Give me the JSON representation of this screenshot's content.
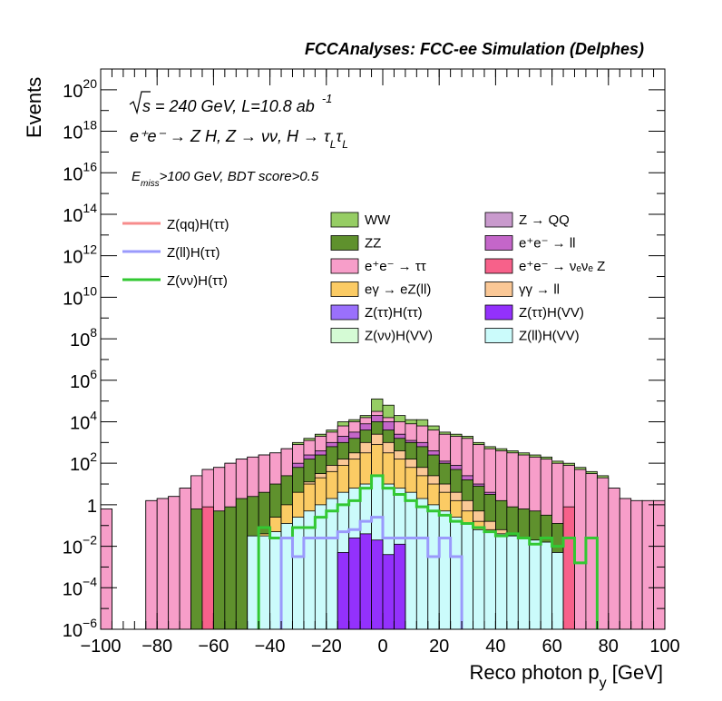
{
  "chart_data": {
    "type": "histogram",
    "title": "FCCAnalyses: FCC-ee Simulation (Delphes)",
    "xlabel": "Reco photon p",
    "xlabel_sub": "y",
    "xlabel_unit": " [GeV]",
    "ylabel": "Events",
    "xlim": [
      -100,
      100
    ],
    "ylim_log10": [
      -6,
      21
    ],
    "log_y": true,
    "grid": false,
    "x_ticks": [
      -100,
      -80,
      -60,
      -40,
      -20,
      0,
      20,
      40,
      60,
      80,
      100
    ],
    "y_ticks": [
      {
        "exp": -6,
        "label": "10",
        "sup": "−6"
      },
      {
        "exp": -4,
        "label": "10",
        "sup": "−4"
      },
      {
        "exp": -2,
        "label": "10",
        "sup": "−2"
      },
      {
        "exp": 0,
        "label": "1",
        "sup": ""
      },
      {
        "exp": 2,
        "label": "10",
        "sup": "2"
      },
      {
        "exp": 4,
        "label": "10",
        "sup": "4"
      },
      {
        "exp": 6,
        "label": "10",
        "sup": "6"
      },
      {
        "exp": 8,
        "label": "10",
        "sup": "8"
      },
      {
        "exp": 10,
        "label": "10",
        "sup": "10"
      },
      {
        "exp": 12,
        "label": "10",
        "sup": "12"
      },
      {
        "exp": 14,
        "label": "10",
        "sup": "14"
      },
      {
        "exp": 16,
        "label": "10",
        "sup": "16"
      },
      {
        "exp": 18,
        "label": "10",
        "sup": "18"
      },
      {
        "exp": 20,
        "label": "10",
        "sup": "20"
      }
    ],
    "annotations": {
      "energy": "= 240 GeV, L=10.8 ab",
      "energy_s": "s",
      "energy_sup": "-1",
      "process": "e⁺e⁻ → Z H, Z → νν, H → τ",
      "process_sub": "L",
      "cut": "E",
      "cut_sub": "miss",
      "cut_rest": ">100 GeV, BDT score>0.5"
    },
    "bin_width": 4,
    "bins_x": [
      -98,
      -94,
      -90,
      -86,
      -82,
      -78,
      -74,
      -70,
      -66,
      -62,
      -58,
      -54,
      -50,
      -46,
      -42,
      -38,
      -34,
      -30,
      -26,
      -22,
      -18,
      -14,
      -10,
      -6,
      -2,
      2,
      6,
      10,
      14,
      18,
      22,
      26,
      30,
      34,
      38,
      42,
      46,
      50,
      54,
      58,
      62,
      66,
      70,
      74,
      78,
      82,
      86,
      90,
      94,
      98
    ],
    "stack_order": [
      "ZZ",
      "WW",
      "Z → QQ",
      "e⁺e⁻ → ll",
      "e⁺e⁻ → ττ",
      "e⁺e⁻ → νₑνₑ Z",
      "eγ → eZ(ll)",
      "γγ → ll",
      "Z(ττ)H(ττ)",
      "Z(ττ)H(VV)",
      "Z(νν)H(VV)",
      "Z(ll)H(VV)"
    ],
    "stack_total_log10": [
      -0.2,
      -6,
      -6,
      -6,
      0.2,
      0.3,
      0.4,
      0.8,
      1.4,
      1.7,
      1.8,
      2.0,
      2.2,
      2.3,
      2.4,
      2.5,
      2.7,
      3.0,
      3.2,
      3.4,
      3.6,
      4.0,
      4.1,
      4.3,
      5.1,
      4.8,
      4.3,
      4.1,
      4.1,
      3.8,
      3.5,
      3.4,
      3.3,
      3.0,
      2.8,
      2.7,
      2.6,
      2.5,
      2.4,
      2.3,
      2.1,
      2.0,
      1.8,
      1.6,
      1.4,
      0.8,
      0.3,
      0.2,
      0.2,
      0.2
    ],
    "components": [
      {
        "name": "e⁺e⁻ → ττ",
        "color": "#f79ec9",
        "log10": [
          -0.2,
          null,
          null,
          null,
          0.2,
          0.3,
          0.4,
          0.8,
          1.4,
          1.7,
          1.8,
          2.0,
          2.2,
          2.3,
          2.4,
          2.5,
          2.7,
          2.9,
          3.1,
          3.3,
          3.5,
          3.8,
          4.0,
          4.2,
          4.5,
          4.2,
          4.0,
          3.9,
          3.8,
          3.6,
          3.4,
          3.3,
          3.2,
          2.9,
          2.7,
          2.6,
          2.5,
          2.4,
          2.3,
          2.2,
          2.0,
          1.9,
          1.7,
          1.5,
          1.3,
          0.8,
          0.3,
          0.2,
          0.2,
          0.2
        ]
      },
      {
        "name": "e⁺e⁻ → ll",
        "color": "#c466c9",
        "log10": [
          null,
          null,
          null,
          null,
          null,
          null,
          null,
          null,
          null,
          null,
          null,
          null,
          -0.8,
          -0.4,
          0.2,
          0.8,
          1.4,
          2.0,
          2.4,
          2.6,
          3.0,
          3.3,
          3.5,
          3.9,
          4.3,
          4.0,
          3.4,
          3.1,
          3.0,
          2.6,
          2.1,
          1.9,
          1.4,
          1.0,
          0.6,
          0.1,
          -0.3,
          -0.8,
          -1.2,
          -1.5,
          null,
          null,
          null,
          null,
          null,
          null,
          null,
          null,
          null,
          null
        ]
      },
      {
        "name": "ZZ",
        "color": "#5f912d",
        "log10": [
          null,
          null,
          null,
          null,
          null,
          null,
          null,
          null,
          -0.2,
          -0.9,
          -0.3,
          -0.1,
          0.3,
          0.4,
          0.6,
          1.0,
          1.4,
          1.8,
          2.2,
          2.4,
          2.8,
          3.0,
          3.2,
          3.6,
          4.0,
          3.6,
          3.2,
          3.0,
          2.8,
          2.4,
          2.0,
          1.7,
          1.2,
          0.9,
          0.5,
          0.2,
          -0.1,
          -0.2,
          -0.3,
          -0.5,
          -0.9,
          null,
          null,
          null,
          null,
          null,
          null,
          null,
          null,
          null
        ]
      },
      {
        "name": "γγ → ll",
        "color": "#fbc896",
        "log10": [
          null,
          null,
          null,
          null,
          null,
          null,
          null,
          null,
          null,
          null,
          null,
          null,
          null,
          null,
          null,
          -1.2,
          -0.2,
          0.5,
          1.1,
          1.5,
          1.9,
          2.2,
          2.5,
          3.0,
          3.4,
          3.0,
          2.6,
          2.2,
          1.8,
          1.4,
          1.0,
          0.6,
          0.2,
          -0.3,
          -0.8,
          -1.2,
          -1.5,
          null,
          null,
          null,
          null,
          null,
          null,
          null,
          null,
          null,
          null,
          null,
          null,
          null
        ]
      },
      {
        "name": "eγ → eZ(ll)",
        "color": "#fbcb64",
        "log10": [
          null,
          null,
          null,
          null,
          null,
          null,
          null,
          null,
          null,
          null,
          null,
          null,
          null,
          null,
          -1.4,
          -0.6,
          0.0,
          0.6,
          1.0,
          1.3,
          1.6,
          1.9,
          2.2,
          2.5,
          2.9,
          2.5,
          2.2,
          1.8,
          1.4,
          1.0,
          0.6,
          0.2,
          -0.3,
          -0.8,
          -1.2,
          -1.6,
          null,
          null,
          null,
          null,
          null,
          null,
          null,
          null,
          null,
          null,
          null,
          null,
          null,
          null
        ]
      },
      {
        "name": "Z(ll)H(VV)",
        "color": "#cbfbfb",
        "log10": [
          null,
          null,
          null,
          null,
          null,
          null,
          null,
          null,
          null,
          null,
          null,
          null,
          null,
          -1.5,
          -1.5,
          -1.3,
          -0.9,
          -0.6,
          -0.3,
          0.0,
          0.3,
          0.6,
          0.8,
          1.0,
          1.4,
          1.0,
          0.8,
          0.6,
          0.3,
          0.0,
          -0.3,
          -0.6,
          -0.9,
          -1.2,
          -1.3,
          -1.4,
          -1.5,
          -1.6,
          -1.7,
          -1.8,
          -2.3,
          null,
          null,
          null,
          null,
          null,
          null,
          null,
          null,
          null
        ]
      },
      {
        "name": "Z(ττ)H(VV)",
        "color": "#9331fc",
        "log10": [
          null,
          null,
          null,
          null,
          null,
          null,
          null,
          null,
          null,
          null,
          null,
          null,
          null,
          null,
          null,
          null,
          null,
          null,
          null,
          null,
          null,
          -2.3,
          -1.6,
          -1.4,
          -1.7,
          -2.4,
          -1.9,
          null,
          null,
          null,
          null,
          null,
          null,
          null,
          null,
          null,
          null,
          null,
          null,
          null,
          null,
          null,
          null,
          null,
          null,
          null,
          null,
          null,
          null,
          null
        ]
      },
      {
        "name": "e⁺e⁻ → νₑνₑ Z",
        "color": "#f7618a",
        "log10": [
          null,
          null,
          null,
          null,
          null,
          null,
          null,
          null,
          null,
          -0.1,
          null,
          null,
          null,
          null,
          null,
          null,
          null,
          null,
          null,
          null,
          null,
          null,
          null,
          null,
          null,
          null,
          null,
          null,
          null,
          null,
          null,
          null,
          null,
          null,
          null,
          null,
          null,
          null,
          null,
          null,
          null,
          -0.1,
          null,
          null,
          null,
          null,
          null,
          null,
          null,
          null
        ]
      }
    ],
    "legend_lines": [
      {
        "name": "Z(qq)H(ττ)",
        "color": "#f78c8c"
      },
      {
        "name": "Z(ll)H(ττ)",
        "color": "#9a9afc"
      },
      {
        "name": "Z(νν)H(ττ)",
        "color": "#32c832"
      }
    ],
    "legend_boxes": [
      {
        "name": "WW",
        "color": "#96cd64"
      },
      {
        "name": "Z → QQ",
        "color": "#c99acd"
      },
      {
        "name": "ZZ",
        "color": "#5f912d"
      },
      {
        "name": "e⁺e⁻ → ll",
        "color": "#c466c9"
      },
      {
        "name": "e⁺e⁻ → ττ",
        "color": "#f79ec9"
      },
      {
        "name": "e⁺e⁻ → νₑνₑ Z",
        "color": "#f7618a"
      },
      {
        "name": "eγ → eZ(ll)",
        "color": "#fbcb64"
      },
      {
        "name": "γγ → ll",
        "color": "#fbc896"
      },
      {
        "name": "Z(ττ)H(ττ)",
        "color": "#9a70fc"
      },
      {
        "name": "Z(ττ)H(VV)",
        "color": "#9331fc"
      },
      {
        "name": "Z(νν)H(VV)",
        "color": "#d5fbd5"
      },
      {
        "name": "Z(ll)H(VV)",
        "color": "#cbfbfb"
      }
    ],
    "line_series": [
      {
        "name": "Z(νν)H(ττ)",
        "color": "#32c832",
        "log10": [
          null,
          null,
          null,
          null,
          null,
          null,
          null,
          null,
          null,
          null,
          null,
          null,
          null,
          null,
          -1.1,
          -1.6,
          -1.6,
          -1.1,
          -1.1,
          -0.6,
          -0.3,
          0.0,
          0.2,
          0.8,
          1.4,
          0.8,
          0.5,
          0.2,
          -0.1,
          -0.3,
          -0.5,
          -0.8,
          -0.9,
          -1.1,
          -1.3,
          -1.5,
          -1.4,
          -1.6,
          -1.9,
          -1.6,
          -2.0,
          -1.6,
          -2.8,
          -1.6,
          null,
          null,
          null,
          null,
          null,
          null
        ]
      },
      {
        "name": "Z(ll)H(ττ)",
        "color": "#9a9afc",
        "log10": [
          null,
          null,
          null,
          null,
          null,
          null,
          null,
          null,
          null,
          null,
          null,
          null,
          null,
          null,
          null,
          null,
          -1.6,
          -2.5,
          -1.6,
          -1.6,
          -1.6,
          -1.3,
          -1.2,
          -0.8,
          -0.6,
          -1.6,
          -1.6,
          -1.6,
          -1.6,
          -2.5,
          -1.6,
          -2.5,
          null,
          null,
          null,
          null,
          null,
          null,
          null,
          null,
          null,
          null,
          null,
          null,
          null,
          null,
          null,
          null,
          null,
          null
        ]
      }
    ]
  }
}
